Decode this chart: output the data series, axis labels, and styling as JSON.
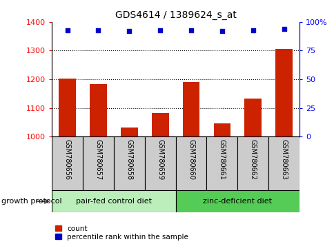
{
  "title": "GDS4614 / 1389624_s_at",
  "samples": [
    "GSM780656",
    "GSM780657",
    "GSM780658",
    "GSM780659",
    "GSM780660",
    "GSM780661",
    "GSM780662",
    "GSM780663"
  ],
  "counts": [
    1203,
    1183,
    1032,
    1082,
    1190,
    1047,
    1132,
    1305
  ],
  "percentiles": [
    93,
    93,
    92,
    93,
    93,
    92,
    93,
    94
  ],
  "groups": [
    {
      "label": "pair-fed control diet",
      "indices": [
        0,
        1,
        2,
        3
      ],
      "color": "#bbeebb"
    },
    {
      "label": "zinc-deficient diet",
      "indices": [
        4,
        5,
        6,
        7
      ],
      "color": "#55cc55"
    }
  ],
  "group_label": "growth protocol",
  "ylim_left": [
    1000,
    1400
  ],
  "ylim_right": [
    0,
    100
  ],
  "yticks_left": [
    1000,
    1100,
    1200,
    1300,
    1400
  ],
  "yticks_right": [
    0,
    25,
    50,
    75,
    100
  ],
  "ytick_labels_right": [
    "0",
    "25",
    "50",
    "75",
    "100%"
  ],
  "bar_color": "#cc2200",
  "dot_color": "#0000cc",
  "bar_width": 0.55,
  "legend_red": "count",
  "legend_blue": "percentile rank within the sample"
}
